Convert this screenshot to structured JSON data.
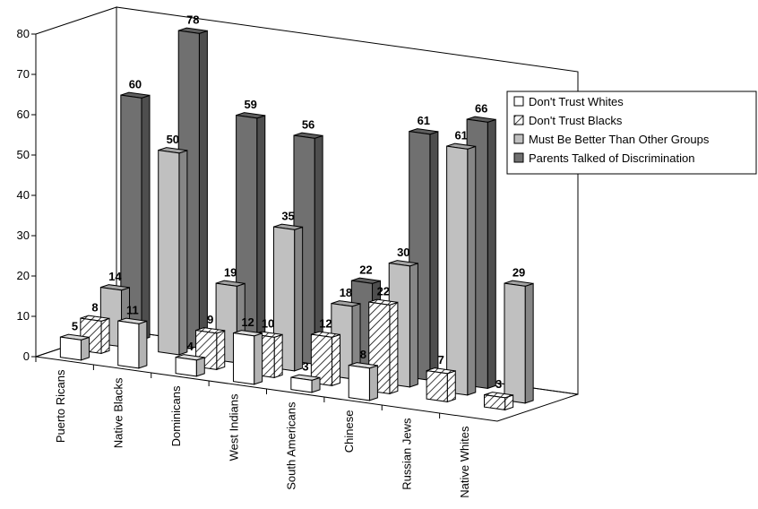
{
  "chart_data": {
    "type": "bar3d",
    "categories": [
      "Puerto Ricans",
      "Native Blacks",
      "Dominicans",
      "West Indians",
      "South Americans",
      "Chinese",
      "Russian Jews",
      "Native Whites"
    ],
    "series": [
      {
        "name": "Don't Trust Whites",
        "color": "#ffffff",
        "values": [
          5,
          11,
          4,
          12,
          3,
          8,
          null,
          null
        ]
      },
      {
        "name": "Don't Trust Blacks",
        "color": "#ffffff",
        "hatch": true,
        "values": [
          8,
          null,
          9,
          10,
          12,
          22,
          7,
          3
        ]
      },
      {
        "name": "Must Be Better Than Other Groups",
        "color": "#c0c0c0",
        "values": [
          14,
          50,
          19,
          35,
          18,
          30,
          61,
          29
        ]
      },
      {
        "name": "Parents Talked of Discrimination",
        "color": "#707070",
        "values": [
          60,
          78,
          59,
          56,
          22,
          61,
          66,
          null
        ]
      }
    ],
    "ylim": [
      0,
      80
    ],
    "yticks": [
      0,
      10,
      20,
      30,
      40,
      50,
      60,
      70,
      80
    ],
    "grid": false,
    "legend": "right"
  }
}
